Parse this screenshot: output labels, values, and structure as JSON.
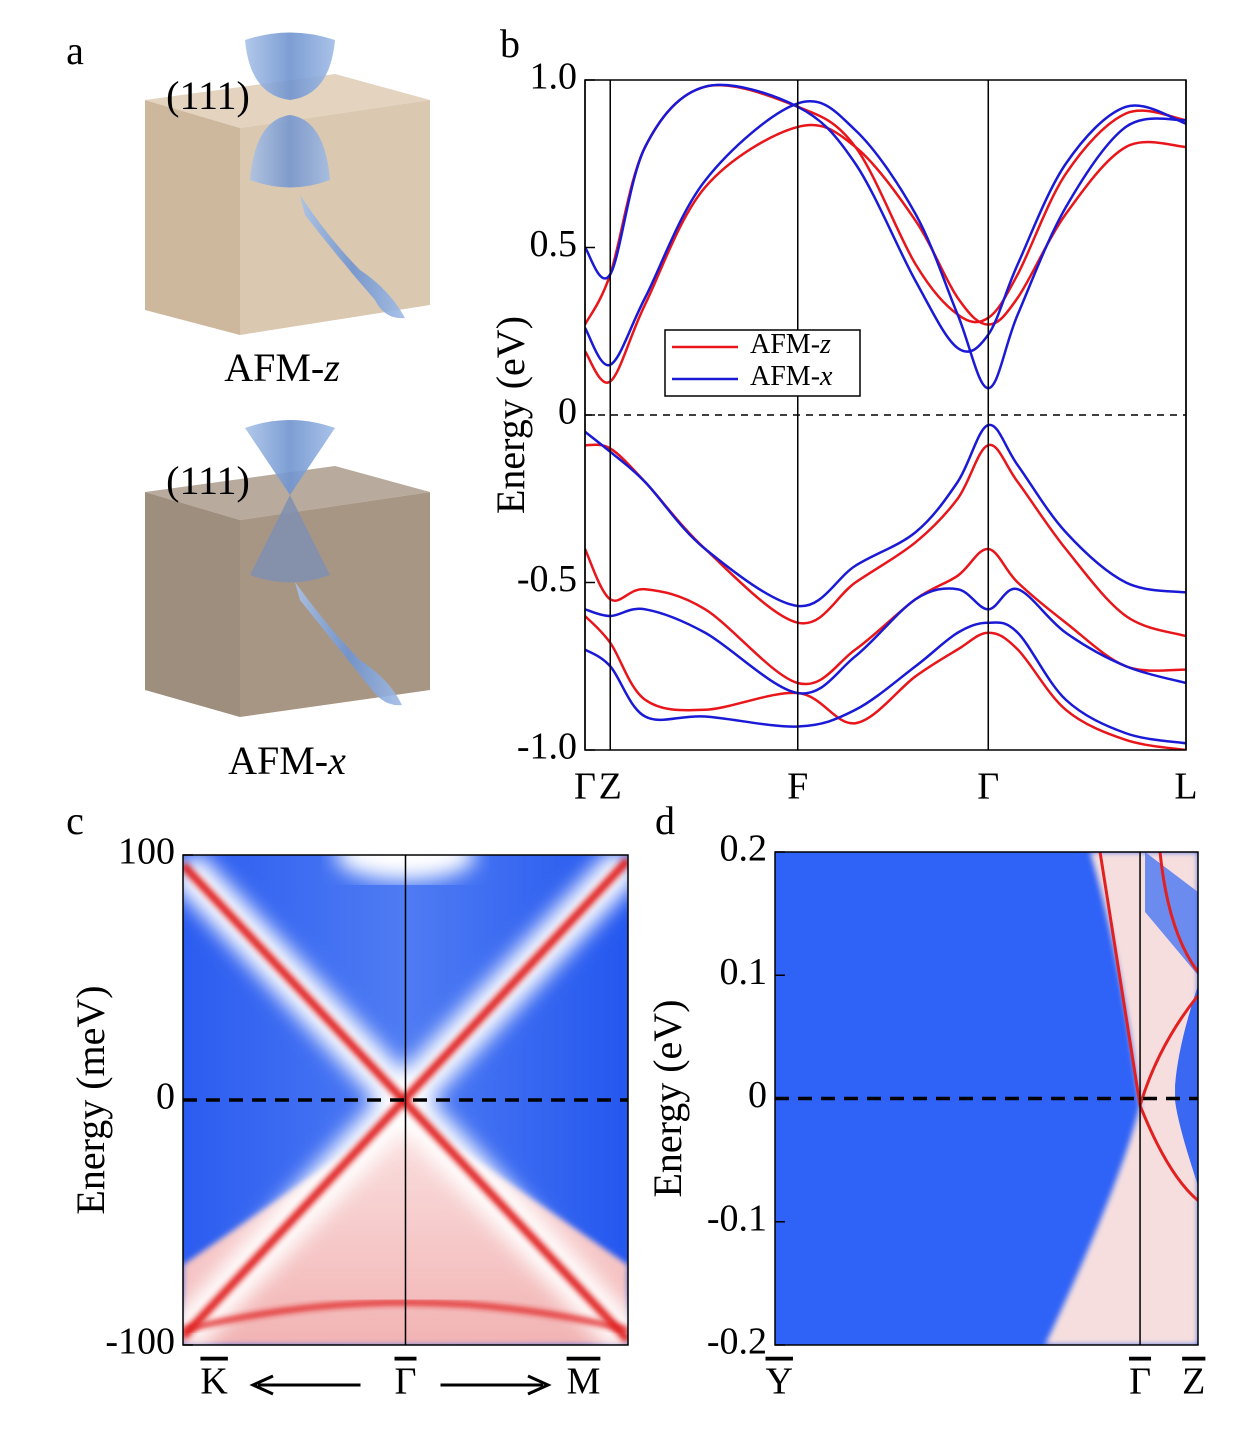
{
  "panel_a": {
    "label": "a",
    "items": [
      {
        "surface": "(111)",
        "caption": "AFM-z"
      },
      {
        "surface": "(111)",
        "caption": "AFM-x"
      }
    ]
  },
  "chart_data": [
    {
      "type": "line",
      "panel_label": "b",
      "ylabel": "Energy (eV)",
      "x": [
        0,
        0.042,
        0.1,
        0.2,
        0.354,
        0.45,
        0.55,
        0.62,
        0.671,
        0.72,
        0.8,
        0.9,
        1.0
      ],
      "xlim": [
        0,
        1
      ],
      "xticks": [
        {
          "value": 0,
          "label": "Γ"
        },
        {
          "value": 0.042,
          "label": "Z"
        },
        {
          "value": 0.354,
          "label": "F"
        },
        {
          "value": 0.671,
          "label": "Γ"
        },
        {
          "value": 1,
          "label": "L"
        }
      ],
      "ylim": [
        -1,
        1
      ],
      "yticks": [
        {
          "value": -1,
          "label": "-1.0"
        },
        -0.5,
        0,
        0.5,
        {
          "value": 1,
          "label": "1.0"
        }
      ],
      "hline": 0,
      "series": [
        {
          "name": "AFM-z",
          "color": "#e8161b",
          "bands": [
            [
              0.19,
              0.1,
              0.33,
              0.68,
              0.86,
              0.8,
              0.58,
              0.35,
              0.27,
              0.35,
              0.6,
              0.8,
              0.8
            ],
            [
              0.27,
              0.42,
              0.8,
              0.98,
              0.92,
              0.8,
              0.45,
              0.3,
              0.29,
              0.42,
              0.72,
              0.9,
              0.88
            ],
            [
              -0.09,
              -0.1,
              -0.2,
              -0.4,
              -0.62,
              -0.5,
              -0.38,
              -0.25,
              -0.09,
              -0.2,
              -0.4,
              -0.6,
              -0.66
            ],
            [
              -0.4,
              -0.55,
              -0.52,
              -0.58,
              -0.8,
              -0.7,
              -0.55,
              -0.48,
              -0.4,
              -0.5,
              -0.62,
              -0.75,
              -0.76
            ],
            [
              -0.6,
              -0.68,
              -0.85,
              -0.88,
              -0.83,
              -0.92,
              -0.78,
              -0.7,
              -0.65,
              -0.7,
              -0.88,
              -0.97,
              -1.0
            ]
          ]
        },
        {
          "name": "AFM-x",
          "color": "#1a1ad6",
          "bands": [
            [
              0.26,
              0.15,
              0.35,
              0.7,
              0.93,
              0.85,
              0.6,
              0.3,
              0.08,
              0.3,
              0.62,
              0.86,
              0.88
            ],
            [
              0.5,
              0.42,
              0.8,
              0.98,
              0.92,
              0.75,
              0.4,
              0.2,
              0.24,
              0.45,
              0.75,
              0.92,
              0.87
            ],
            [
              -0.05,
              -0.11,
              -0.2,
              -0.4,
              -0.57,
              -0.45,
              -0.35,
              -0.2,
              -0.03,
              -0.15,
              -0.35,
              -0.5,
              -0.53
            ],
            [
              -0.58,
              -0.6,
              -0.58,
              -0.65,
              -0.83,
              -0.72,
              -0.55,
              -0.52,
              -0.58,
              -0.52,
              -0.65,
              -0.75,
              -0.8
            ],
            [
              -0.7,
              -0.75,
              -0.9,
              -0.9,
              -0.93,
              -0.88,
              -0.75,
              -0.65,
              -0.62,
              -0.65,
              -0.85,
              -0.95,
              -0.98
            ]
          ]
        }
      ]
    },
    {
      "type": "heatmap",
      "panel_label": "c",
      "ylabel": "Energy (meV)",
      "xlim": [
        -1,
        1
      ],
      "xticks": [
        {
          "value": -0.86,
          "label": "K"
        },
        {
          "value": 0,
          "label": "Γ"
        },
        {
          "value": 0.8,
          "label": "M"
        }
      ],
      "overline_ticks": true,
      "arrows": true,
      "ylim": [
        -100,
        100
      ],
      "yticks": [
        -100,
        0,
        100
      ],
      "hline": 0
    },
    {
      "type": "heatmap",
      "panel_label": "d",
      "ylabel": "Energy (eV)",
      "xlim": [
        0,
        1
      ],
      "xticks": [
        {
          "value": 0.01,
          "label": "Y"
        },
        {
          "value": 0.863,
          "label": "Γ"
        },
        {
          "value": 0.99,
          "label": "Z"
        }
      ],
      "overline_ticks": true,
      "ylim": [
        -0.2,
        0.2
      ],
      "yticks": [
        -0.2,
        -0.1,
        0,
        0.1,
        0.2
      ],
      "hline": 0
    }
  ]
}
